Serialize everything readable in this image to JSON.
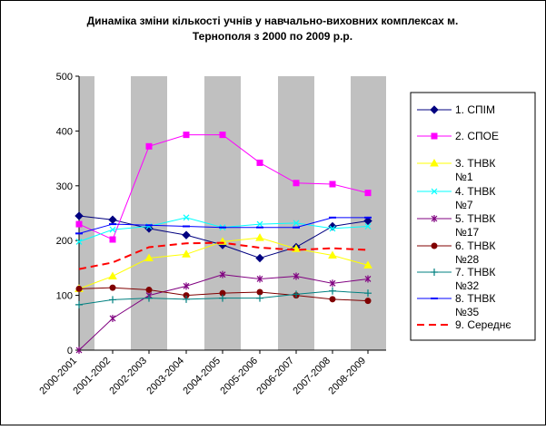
{
  "chart_data": {
    "type": "line",
    "title": "Динаміка зміни кількості учнів у навчально-виховних комплексах м. Тернополя з 2000 по 2009 р.р.",
    "title_lines": [
      "Динаміка зміни кількості учнів у навчально-виховних комплексах м.",
      "Тернополя з 2000 по 2009 р.р."
    ],
    "xlabel": "",
    "ylabel": "",
    "ylim": [
      0,
      500
    ],
    "yticks": [
      0,
      100,
      200,
      300,
      400,
      500
    ],
    "grid": false,
    "legend_position": "right",
    "categories": [
      "2000-2001",
      "2001-2002",
      "2002-2003",
      "2003-2004",
      "2004-2005",
      "2005-2006",
      "2006-2007",
      "2007-2008",
      "2008-2009"
    ],
    "series": [
      {
        "name": "1. СПІМ",
        "color": "#000080",
        "marker": "diamond",
        "dash": false,
        "values": [
          245,
          238,
          222,
          210,
          192,
          168,
          188,
          226,
          236
        ]
      },
      {
        "name": "2. СПОЕ",
        "color": "#ff00ff",
        "marker": "square",
        "dash": false,
        "values": [
          230,
          202,
          372,
          393,
          393,
          342,
          305,
          303,
          287
        ]
      },
      {
        "name": "3. ТНВК №1",
        "color": "#ffff00",
        "marker": "triangle",
        "dash": false,
        "values": [
          112,
          135,
          168,
          175,
          198,
          205,
          185,
          173,
          155
        ]
      },
      {
        "name": "4. ТНВК №7",
        "color": "#00ffff",
        "marker": "x",
        "dash": false,
        "values": [
          198,
          220,
          226,
          242,
          224,
          230,
          232,
          222,
          226
        ]
      },
      {
        "name": "5. ТНВК №17",
        "color": "#800080",
        "marker": "star",
        "dash": false,
        "values": [
          0,
          58,
          100,
          117,
          138,
          130,
          135,
          122,
          130
        ]
      },
      {
        "name": "6. ТНВК №28",
        "color": "#800000",
        "marker": "circle",
        "dash": false,
        "values": [
          112,
          114,
          110,
          100,
          104,
          106,
          100,
          93,
          90
        ]
      },
      {
        "name": "7. ТНВК №32",
        "color": "#008080",
        "marker": "plus",
        "dash": false,
        "values": [
          83,
          92,
          95,
          93,
          95,
          95,
          102,
          108,
          104
        ]
      },
      {
        "name": "8. ТНВК №35",
        "color": "#0000ff",
        "marker": "dash",
        "dash": false,
        "values": [
          213,
          230,
          228,
          226,
          224,
          224,
          224,
          242,
          242
        ]
      },
      {
        "name": "9. Середнє",
        "color": "#ff0000",
        "marker": "none",
        "dash": true,
        "values": [
          148,
          160,
          188,
          195,
          196,
          187,
          183,
          186,
          183
        ]
      }
    ]
  }
}
